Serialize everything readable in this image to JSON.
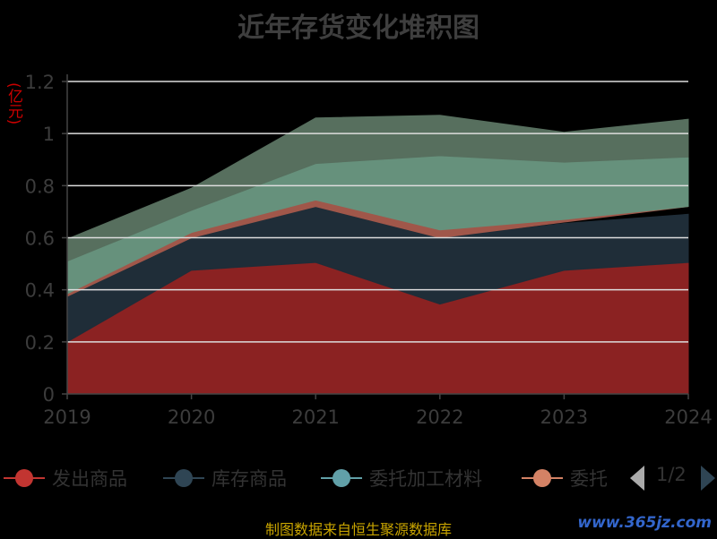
{
  "title": "近年存货变化堆积图",
  "y_unit": "(亿元)",
  "source": "制图数据来自恒生聚源数据库",
  "watermark": "www.365jz.com",
  "legend": {
    "items": [
      {
        "label": "发出商品",
        "color": "#c23531"
      },
      {
        "label": "库存商品",
        "color": "#2f4554"
      },
      {
        "label": "委托加工材料",
        "color": "#61a0a8"
      },
      {
        "label": "委托",
        "color": "#d48265"
      }
    ],
    "page_text": "1/2"
  },
  "chart_data": {
    "type": "area",
    "stacked": true,
    "title": "近年存货变化堆积图",
    "ylabel": "(亿元)",
    "ylim": [
      0,
      1.2
    ],
    "x": [
      "2019",
      "2020",
      "2021",
      "2022",
      "2023",
      "2024"
    ],
    "y_ticks": [
      "0",
      "0.2",
      "0.4",
      "0.6",
      "0.8",
      "1",
      "1.2"
    ],
    "grid": true,
    "legend_position": "bottom",
    "series": [
      {
        "name": "发出商品",
        "color": "#8b2222",
        "values": [
          0.2,
          0.475,
          0.505,
          0.345,
          0.475,
          0.505
        ]
      },
      {
        "name": "库存商品",
        "color": "#1f2d38",
        "values": [
          0.175,
          0.125,
          0.215,
          0.255,
          0.18,
          0.185
        ]
      },
      {
        "name": "委托加工材料",
        "color": null,
        "values": [
          0.0,
          0.0,
          0.0,
          0.0,
          0.005,
          0.03
        ]
      },
      {
        "name": "委托",
        "color": "#a0574a",
        "values": [
          0.01,
          0.02,
          0.025,
          0.03,
          0.01,
          0.0
        ]
      },
      {
        "name": null,
        "color": "#66917c",
        "values": [
          0.125,
          0.085,
          0.14,
          0.285,
          0.22,
          0.19
        ]
      },
      {
        "name": null,
        "color": "#576f5e",
        "values": [
          0.085,
          0.085,
          0.175,
          0.155,
          0.115,
          0.145
        ]
      }
    ]
  }
}
